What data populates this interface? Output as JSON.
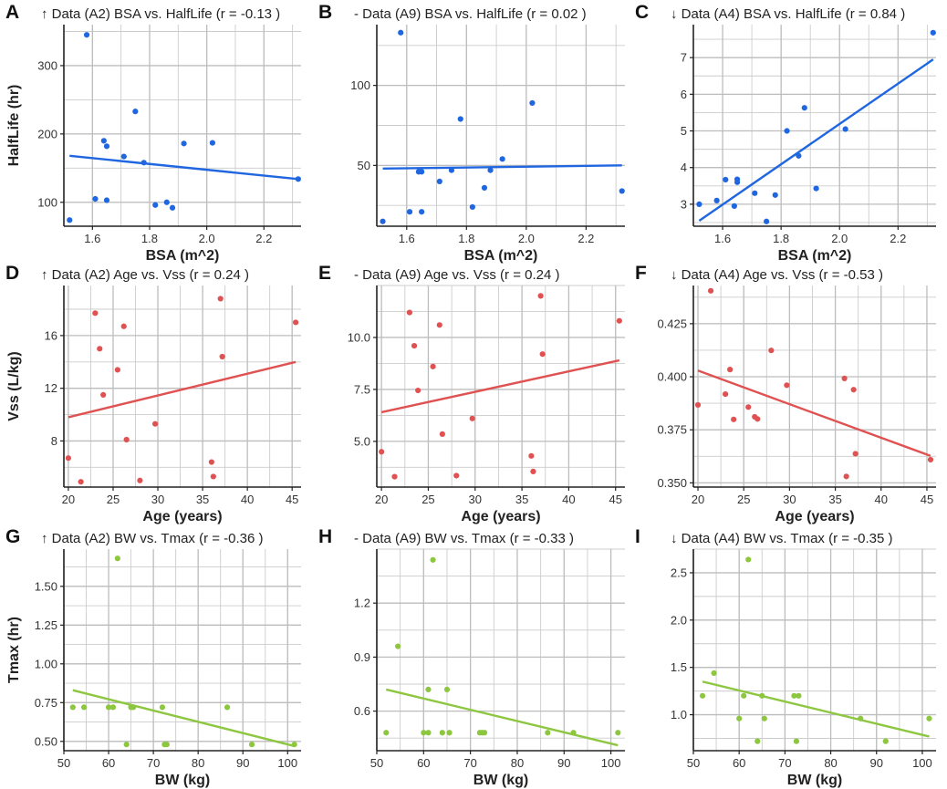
{
  "colors": {
    "blue": "#1f66e0",
    "red": "#e05252",
    "green": "#8dc63f",
    "grid": "#cccccc",
    "frame": "#222222"
  },
  "chart_data": [
    {
      "letter": "A",
      "type": "scatter",
      "title": "↑ Data (A2) BSA vs. HalfLife (r = -0.13 )",
      "xlabel": "BSA (m^2)",
      "ylabel": "HalfLife (hr)",
      "color": "blue",
      "xlim": [
        1.5,
        2.33
      ],
      "ylim": [
        65,
        360
      ],
      "xticks": [
        1.6,
        1.8,
        2.0,
        2.2
      ],
      "xtick_labels": [
        "1.6",
        "1.8",
        "2.0",
        "2.2"
      ],
      "yticks": [
        100,
        200,
        300
      ],
      "ytick_labels": [
        "100",
        "200",
        "300"
      ],
      "points": [
        [
          1.52,
          74
        ],
        [
          1.58,
          345
        ],
        [
          1.61,
          105
        ],
        [
          1.64,
          190
        ],
        [
          1.65,
          182
        ],
        [
          1.65,
          103
        ],
        [
          1.71,
          167
        ],
        [
          1.75,
          233
        ],
        [
          1.78,
          158
        ],
        [
          1.82,
          96
        ],
        [
          1.86,
          100
        ],
        [
          1.88,
          92
        ],
        [
          1.92,
          186
        ],
        [
          2.02,
          187
        ],
        [
          2.32,
          134
        ]
      ],
      "fit": [
        [
          1.52,
          168
        ],
        [
          2.32,
          134
        ]
      ]
    },
    {
      "letter": "B",
      "type": "scatter",
      "title": "- Data (A9) BSA vs. HalfLife (r = 0.02 )",
      "xlabel": "BSA (m^2)",
      "ylabel": "",
      "color": "blue",
      "xlim": [
        1.5,
        2.33
      ],
      "ylim": [
        12,
        138
      ],
      "xticks": [
        1.6,
        1.8,
        2.0,
        2.2
      ],
      "xtick_labels": [
        "1.6",
        "1.8",
        "2.0",
        "2.2"
      ],
      "yticks": [
        50,
        100
      ],
      "ytick_labels": [
        "50",
        "100"
      ],
      "points": [
        [
          1.52,
          15
        ],
        [
          1.58,
          133
        ],
        [
          1.61,
          21
        ],
        [
          1.64,
          46
        ],
        [
          1.65,
          46
        ],
        [
          1.65,
          21
        ],
        [
          1.71,
          40
        ],
        [
          1.75,
          47
        ],
        [
          1.78,
          79
        ],
        [
          1.82,
          24
        ],
        [
          1.86,
          36
        ],
        [
          1.88,
          47
        ],
        [
          1.92,
          54
        ],
        [
          2.02,
          89
        ],
        [
          2.32,
          34
        ]
      ],
      "fit": [
        [
          1.52,
          48
        ],
        [
          2.32,
          50
        ]
      ]
    },
    {
      "letter": "C",
      "type": "scatter",
      "title": "↓ Data (A4) BSA vs. HalfLife (r = 0.84 )",
      "xlabel": "BSA (m^2)",
      "ylabel": "",
      "color": "blue",
      "xlim": [
        1.5,
        2.33
      ],
      "ylim": [
        2.4,
        7.9
      ],
      "xticks": [
        1.6,
        1.8,
        2.0,
        2.2
      ],
      "xtick_labels": [
        "1.6",
        "1.8",
        "2.0",
        "2.2"
      ],
      "yticks": [
        3,
        4,
        5,
        6,
        7
      ],
      "ytick_labels": [
        "3",
        "4",
        "5",
        "6",
        "7"
      ],
      "points": [
        [
          1.52,
          3.0
        ],
        [
          1.58,
          3.1
        ],
        [
          1.61,
          3.67
        ],
        [
          1.64,
          2.95
        ],
        [
          1.65,
          3.6
        ],
        [
          1.65,
          3.68
        ],
        [
          1.71,
          3.3
        ],
        [
          1.75,
          2.53
        ],
        [
          1.78,
          3.25
        ],
        [
          1.82,
          5.0
        ],
        [
          1.86,
          4.32
        ],
        [
          1.88,
          5.63
        ],
        [
          1.92,
          3.43
        ],
        [
          2.02,
          5.05
        ],
        [
          2.32,
          7.68
        ]
      ],
      "fit": [
        [
          1.52,
          2.55
        ],
        [
          2.32,
          6.95
        ]
      ]
    },
    {
      "letter": "D",
      "type": "scatter",
      "title": "↑ Data (A2) Age vs. Vss (r = 0.24 )",
      "xlabel": "Age (years)",
      "ylabel": "Vss (L/kg)",
      "color": "red",
      "xlim": [
        19.5,
        46
      ],
      "ylim": [
        4.5,
        19.8
      ],
      "xticks": [
        20,
        25,
        30,
        35,
        40,
        45
      ],
      "xtick_labels": [
        "20",
        "25",
        "30",
        "35",
        "40",
        "45"
      ],
      "yticks": [
        8,
        12,
        16
      ],
      "ytick_labels": [
        "8",
        "12",
        "16"
      ],
      "points": [
        [
          20,
          6.7
        ],
        [
          21.4,
          4.9
        ],
        [
          23,
          17.7
        ],
        [
          23.5,
          15
        ],
        [
          23.9,
          11.5
        ],
        [
          25.5,
          13.4
        ],
        [
          26.2,
          16.7
        ],
        [
          26.5,
          8.1
        ],
        [
          28,
          5
        ],
        [
          29.7,
          9.3
        ],
        [
          36,
          6.4
        ],
        [
          36.2,
          5.3
        ],
        [
          37,
          18.8
        ],
        [
          37.2,
          14.4
        ],
        [
          45.4,
          17
        ]
      ],
      "fit": [
        [
          20,
          9.8
        ],
        [
          45.4,
          14
        ]
      ]
    },
    {
      "letter": "E",
      "type": "scatter",
      "title": "- Data (A9) Age vs. Vss (r = 0.24 )",
      "xlabel": "Age (years)",
      "ylabel": "",
      "color": "red",
      "xlim": [
        19.5,
        46
      ],
      "ylim": [
        2.8,
        12.5
      ],
      "xticks": [
        20,
        25,
        30,
        35,
        40,
        45
      ],
      "xtick_labels": [
        "20",
        "25",
        "30",
        "35",
        "40",
        "45"
      ],
      "yticks": [
        5.0,
        7.5,
        10.0
      ],
      "ytick_labels": [
        "5.0",
        "7.5",
        "10.0"
      ],
      "points": [
        [
          20,
          4.5
        ],
        [
          21.4,
          3.3
        ],
        [
          23,
          11.2
        ],
        [
          23.5,
          9.6
        ],
        [
          23.9,
          7.45
        ],
        [
          25.5,
          8.6
        ],
        [
          26.2,
          10.6
        ],
        [
          26.5,
          5.35
        ],
        [
          28,
          3.35
        ],
        [
          29.7,
          6.1
        ],
        [
          36,
          4.3
        ],
        [
          36.2,
          3.55
        ],
        [
          37,
          12
        ],
        [
          37.2,
          9.2
        ],
        [
          45.4,
          10.8
        ]
      ],
      "fit": [
        [
          20,
          6.4
        ],
        [
          45.4,
          8.9
        ]
      ]
    },
    {
      "letter": "F",
      "type": "scatter",
      "title": "↓ Data (A4) Age vs. Vss (r = -0.53 )",
      "xlabel": "Age (years)",
      "ylabel": "",
      "color": "red",
      "xlim": [
        19.5,
        46
      ],
      "ylim": [
        0.348,
        0.443
      ],
      "xticks": [
        20,
        25,
        30,
        35,
        40,
        45
      ],
      "xtick_labels": [
        "20",
        "25",
        "30",
        "35",
        "40",
        "45"
      ],
      "yticks": [
        0.35,
        0.375,
        0.4,
        0.425
      ],
      "ytick_labels": [
        "0.350",
        "0.375",
        "0.400",
        "0.425"
      ],
      "points": [
        [
          20,
          0.3867
        ],
        [
          21.4,
          0.4405
        ],
        [
          23,
          0.3918
        ],
        [
          23.5,
          0.4034
        ],
        [
          23.9,
          0.3799
        ],
        [
          25.5,
          0.3857
        ],
        [
          26.2,
          0.3811
        ],
        [
          26.5,
          0.3801
        ],
        [
          28,
          0.4124
        ],
        [
          29.7,
          0.396
        ],
        [
          36,
          0.3992
        ],
        [
          36.2,
          0.353
        ],
        [
          37,
          0.3939
        ],
        [
          37.2,
          0.3637
        ],
        [
          45.4,
          0.3609
        ]
      ],
      "fit": [
        [
          20,
          0.4029
        ],
        [
          45.4,
          0.3627
        ]
      ]
    },
    {
      "letter": "G",
      "type": "scatter",
      "title": "↑ Data (A2) BW vs. Tmax (r = -0.36 )",
      "xlabel": "BW (kg)",
      "ylabel": "Tmax (hr)",
      "color": "green",
      "xlim": [
        50,
        103
      ],
      "ylim": [
        0.44,
        1.74
      ],
      "xticks": [
        50,
        60,
        70,
        80,
        90,
        100
      ],
      "xtick_labels": [
        "50",
        "60",
        "70",
        "80",
        "90",
        "100"
      ],
      "yticks": [
        0.5,
        0.75,
        1.0,
        1.25,
        1.5
      ],
      "ytick_labels": [
        "0.50",
        "0.75",
        "1.00",
        "1.25",
        "1.50"
      ],
      "points": [
        [
          52,
          0.72
        ],
        [
          54.5,
          0.72
        ],
        [
          60,
          0.72
        ],
        [
          61,
          0.72
        ],
        [
          62,
          1.68
        ],
        [
          64,
          0.48
        ],
        [
          65,
          0.72
        ],
        [
          65.5,
          0.72
        ],
        [
          72,
          0.72
        ],
        [
          72.5,
          0.48
        ],
        [
          73,
          0.48
        ],
        [
          86.5,
          0.72
        ],
        [
          92,
          0.48
        ],
        [
          101.5,
          0.48
        ]
      ],
      "fit": [
        [
          52,
          0.83
        ],
        [
          101.5,
          0.47
        ]
      ]
    },
    {
      "letter": "H",
      "type": "scatter",
      "title": "- Data (A9) BW vs. Tmax (r = -0.33 )",
      "xlabel": "BW (kg)",
      "ylabel": "",
      "color": "green",
      "xlim": [
        50,
        103
      ],
      "ylim": [
        0.38,
        1.5
      ],
      "xticks": [
        50,
        60,
        70,
        80,
        90,
        100
      ],
      "xtick_labels": [
        "50",
        "60",
        "70",
        "80",
        "90",
        "100"
      ],
      "yticks": [
        0.6,
        0.9,
        1.2
      ],
      "ytick_labels": [
        "0.6",
        "0.9",
        "1.2"
      ],
      "points": [
        [
          52,
          0.48
        ],
        [
          54.5,
          0.96
        ],
        [
          60,
          0.48
        ],
        [
          61,
          0.72
        ],
        [
          61,
          0.48
        ],
        [
          62,
          1.44
        ],
        [
          64,
          0.48
        ],
        [
          65,
          0.72
        ],
        [
          65.5,
          0.48
        ],
        [
          72,
          0.48
        ],
        [
          72.5,
          0.48
        ],
        [
          73,
          0.48
        ],
        [
          86.5,
          0.48
        ],
        [
          92,
          0.48
        ],
        [
          101.5,
          0.48
        ]
      ],
      "fit": [
        [
          52,
          0.72
        ],
        [
          101.5,
          0.41
        ]
      ]
    },
    {
      "letter": "I",
      "type": "scatter",
      "title": "↓ Data (A4) BW vs. Tmax (r = -0.35 )",
      "xlabel": "BW (kg)",
      "ylabel": "",
      "color": "green",
      "xlim": [
        50,
        103
      ],
      "ylim": [
        0.62,
        2.75
      ],
      "xticks": [
        50,
        60,
        70,
        80,
        90,
        100
      ],
      "xtick_labels": [
        "50",
        "60",
        "70",
        "80",
        "90",
        "100"
      ],
      "yticks": [
        1.0,
        1.5,
        2.0,
        2.5
      ],
      "ytick_labels": [
        "1.0",
        "1.5",
        "2.0",
        "2.5"
      ],
      "points": [
        [
          52,
          1.2
        ],
        [
          54.5,
          1.44
        ],
        [
          60,
          0.96
        ],
        [
          61,
          1.2
        ],
        [
          62,
          2.64
        ],
        [
          64,
          0.72
        ],
        [
          65,
          1.2
        ],
        [
          65.5,
          0.96
        ],
        [
          72,
          1.2
        ],
        [
          72.5,
          0.72
        ],
        [
          73,
          1.2
        ],
        [
          86.5,
          0.96
        ],
        [
          92,
          0.72
        ],
        [
          101.5,
          0.96
        ]
      ],
      "fit": [
        [
          52,
          1.35
        ],
        [
          101.5,
          0.77
        ]
      ]
    }
  ]
}
